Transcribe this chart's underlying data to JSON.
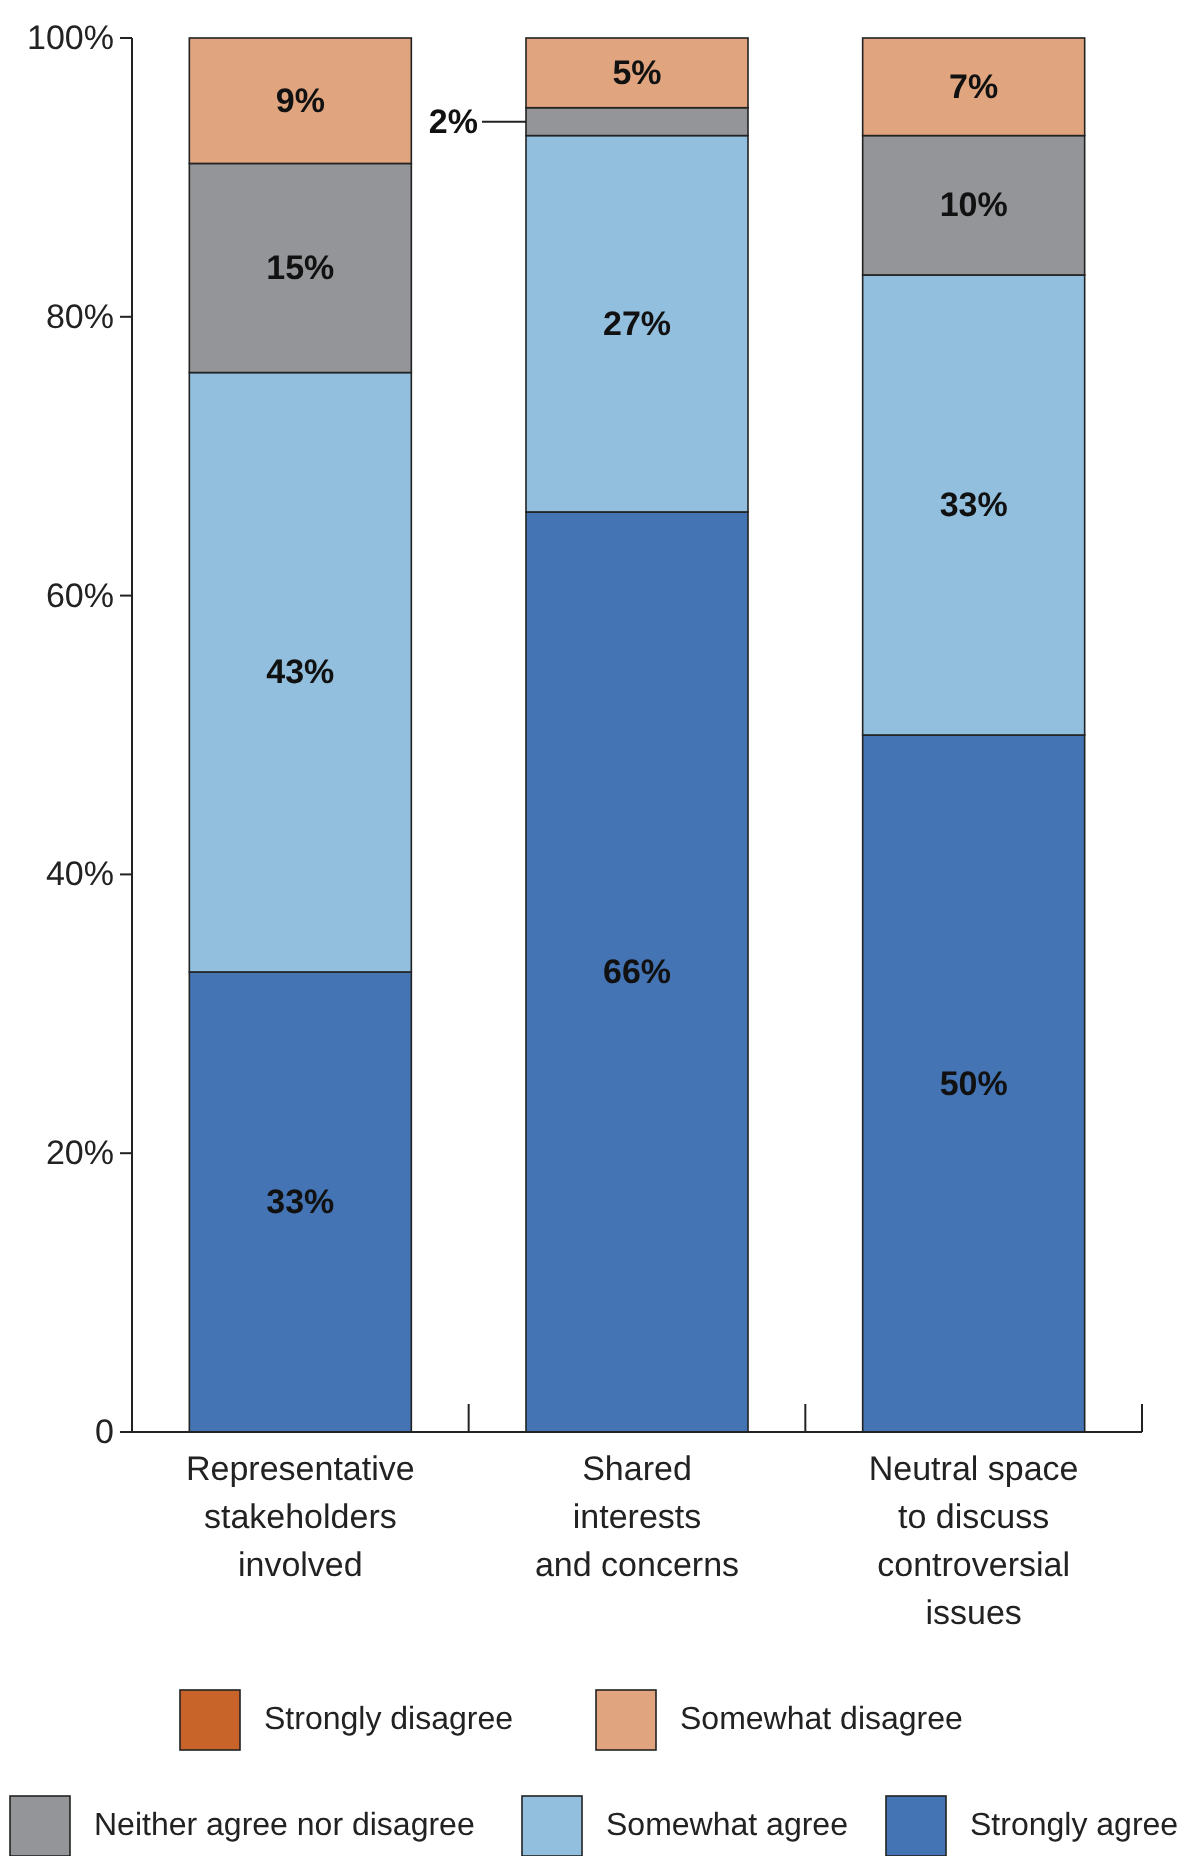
{
  "chart_data": {
    "type": "bar",
    "stacked": true,
    "categories": [
      "Representative\nstakeholders\ninvolved",
      "Shared\ninterests\nand concerns",
      "Neutral space\nto discuss\ncontroversial\nissues"
    ],
    "ylim": [
      0,
      100
    ],
    "yticks": [
      {
        "value": 0,
        "label": "0"
      },
      {
        "value": 20,
        "label": "20%"
      },
      {
        "value": 40,
        "label": "40%"
      },
      {
        "value": 60,
        "label": "60%"
      },
      {
        "value": 80,
        "label": "80%"
      },
      {
        "value": 100,
        "label": "100%"
      }
    ],
    "legend": "bottom",
    "grid": false,
    "series": [
      {
        "name": "Strongly agree",
        "color": "#4474b3",
        "values": [
          33,
          66,
          50
        ],
        "value_labels": [
          "33%",
          "66%",
          "50%"
        ]
      },
      {
        "name": "Somewhat agree",
        "color": "#92bfdd",
        "values": [
          43,
          27,
          33
        ],
        "value_labels": [
          "43%",
          "27%",
          "33%"
        ]
      },
      {
        "name": "Neither agree nor disagree",
        "color": "#939598",
        "values": [
          15,
          2,
          10
        ],
        "value_labels": [
          "15%",
          "2%",
          "10%"
        ]
      },
      {
        "name": "Somewhat disagree",
        "color": "#e0a57f",
        "values": [
          9,
          5,
          7
        ],
        "value_labels": [
          "9%",
          "5%",
          "7%"
        ]
      },
      {
        "name": "Strongly disagree",
        "color": "#c8632a",
        "values": [
          0,
          0,
          0
        ],
        "value_labels": [
          null,
          null,
          null
        ]
      }
    ]
  }
}
